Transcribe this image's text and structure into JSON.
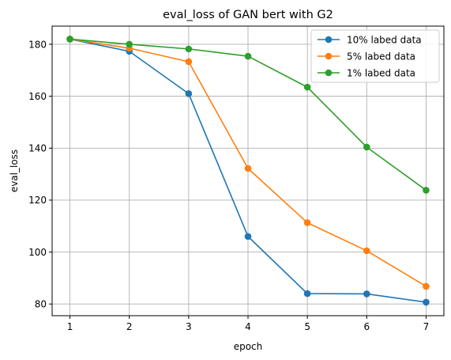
{
  "chart_data": {
    "type": "line",
    "title": "eval_loss of GAN bert with G2",
    "xlabel": "epoch",
    "ylabel": "eval_loss",
    "x": [
      1,
      2,
      3,
      4,
      5,
      6,
      7
    ],
    "xticks": [
      "1",
      "2",
      "3",
      "4",
      "5",
      "6",
      "7"
    ],
    "yticks": [
      "80",
      "100",
      "120",
      "140",
      "160",
      "180"
    ],
    "xlim": [
      0.7,
      7.3
    ],
    "ylim": [
      75.5,
      187.0
    ],
    "grid": true,
    "legend_position": "top-right",
    "series": [
      {
        "name": "10% labed data",
        "color": "#1f77b4",
        "values": [
          182.0,
          177.3,
          161.0,
          106.0,
          84.0,
          83.9,
          80.7
        ]
      },
      {
        "name": "5% labed data",
        "color": "#ff7f0e",
        "values": [
          182.0,
          178.5,
          173.3,
          132.2,
          111.3,
          100.5,
          86.8
        ]
      },
      {
        "name": "1% labed data",
        "color": "#2ca02c",
        "values": [
          182.0,
          180.0,
          178.2,
          175.4,
          163.5,
          140.4,
          123.8
        ]
      }
    ]
  }
}
